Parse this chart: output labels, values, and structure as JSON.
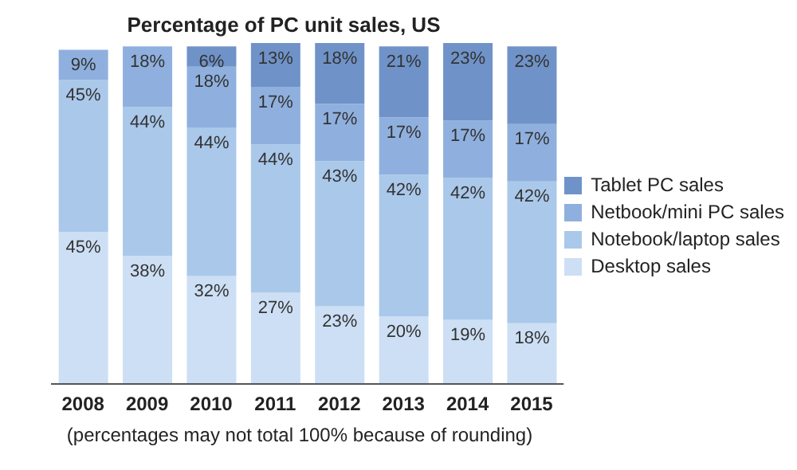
{
  "chart_data": {
    "type": "bar",
    "title": "Percentage of PC unit sales, US",
    "stacked": true,
    "legend": "right",
    "categories": [
      "2008",
      "2009",
      "2010",
      "2011",
      "2012",
      "2013",
      "2014",
      "2015"
    ],
    "series": [
      {
        "name": "Desktop sales",
        "color": "#cddff4",
        "values": [
          45,
          38,
          32,
          27,
          23,
          20,
          19,
          18
        ],
        "value_labels": [
          "45%",
          "38%",
          "32%",
          "27%",
          "23%",
          "20%",
          "19%",
          "18%"
        ]
      },
      {
        "name": "Notebook/laptop sales",
        "color": "#aac8ea",
        "values": [
          45,
          44,
          44,
          44,
          43,
          42,
          42,
          42
        ],
        "value_labels": [
          "45%",
          "44%",
          "44%",
          "44%",
          "43%",
          "42%",
          "42%",
          "42%"
        ]
      },
      {
        "name": "Netbook/mini PC sales",
        "color": "#8fb0de",
        "values": [
          9,
          18,
          18,
          17,
          17,
          17,
          17,
          17
        ],
        "value_labels": [
          "9%",
          "18%",
          "18%",
          "17%",
          "17%",
          "17%",
          "17%",
          "17%"
        ]
      },
      {
        "name": "Tablet PC sales",
        "color": "#6f93c8",
        "values": [
          null,
          null,
          6,
          13,
          18,
          21,
          23,
          23
        ],
        "value_labels": [
          null,
          null,
          "6%",
          "13%",
          "18%",
          "21%",
          "23%",
          "23%"
        ]
      }
    ],
    "annotations": [
      "(percentages may not total 100% because of rounding)"
    ]
  }
}
